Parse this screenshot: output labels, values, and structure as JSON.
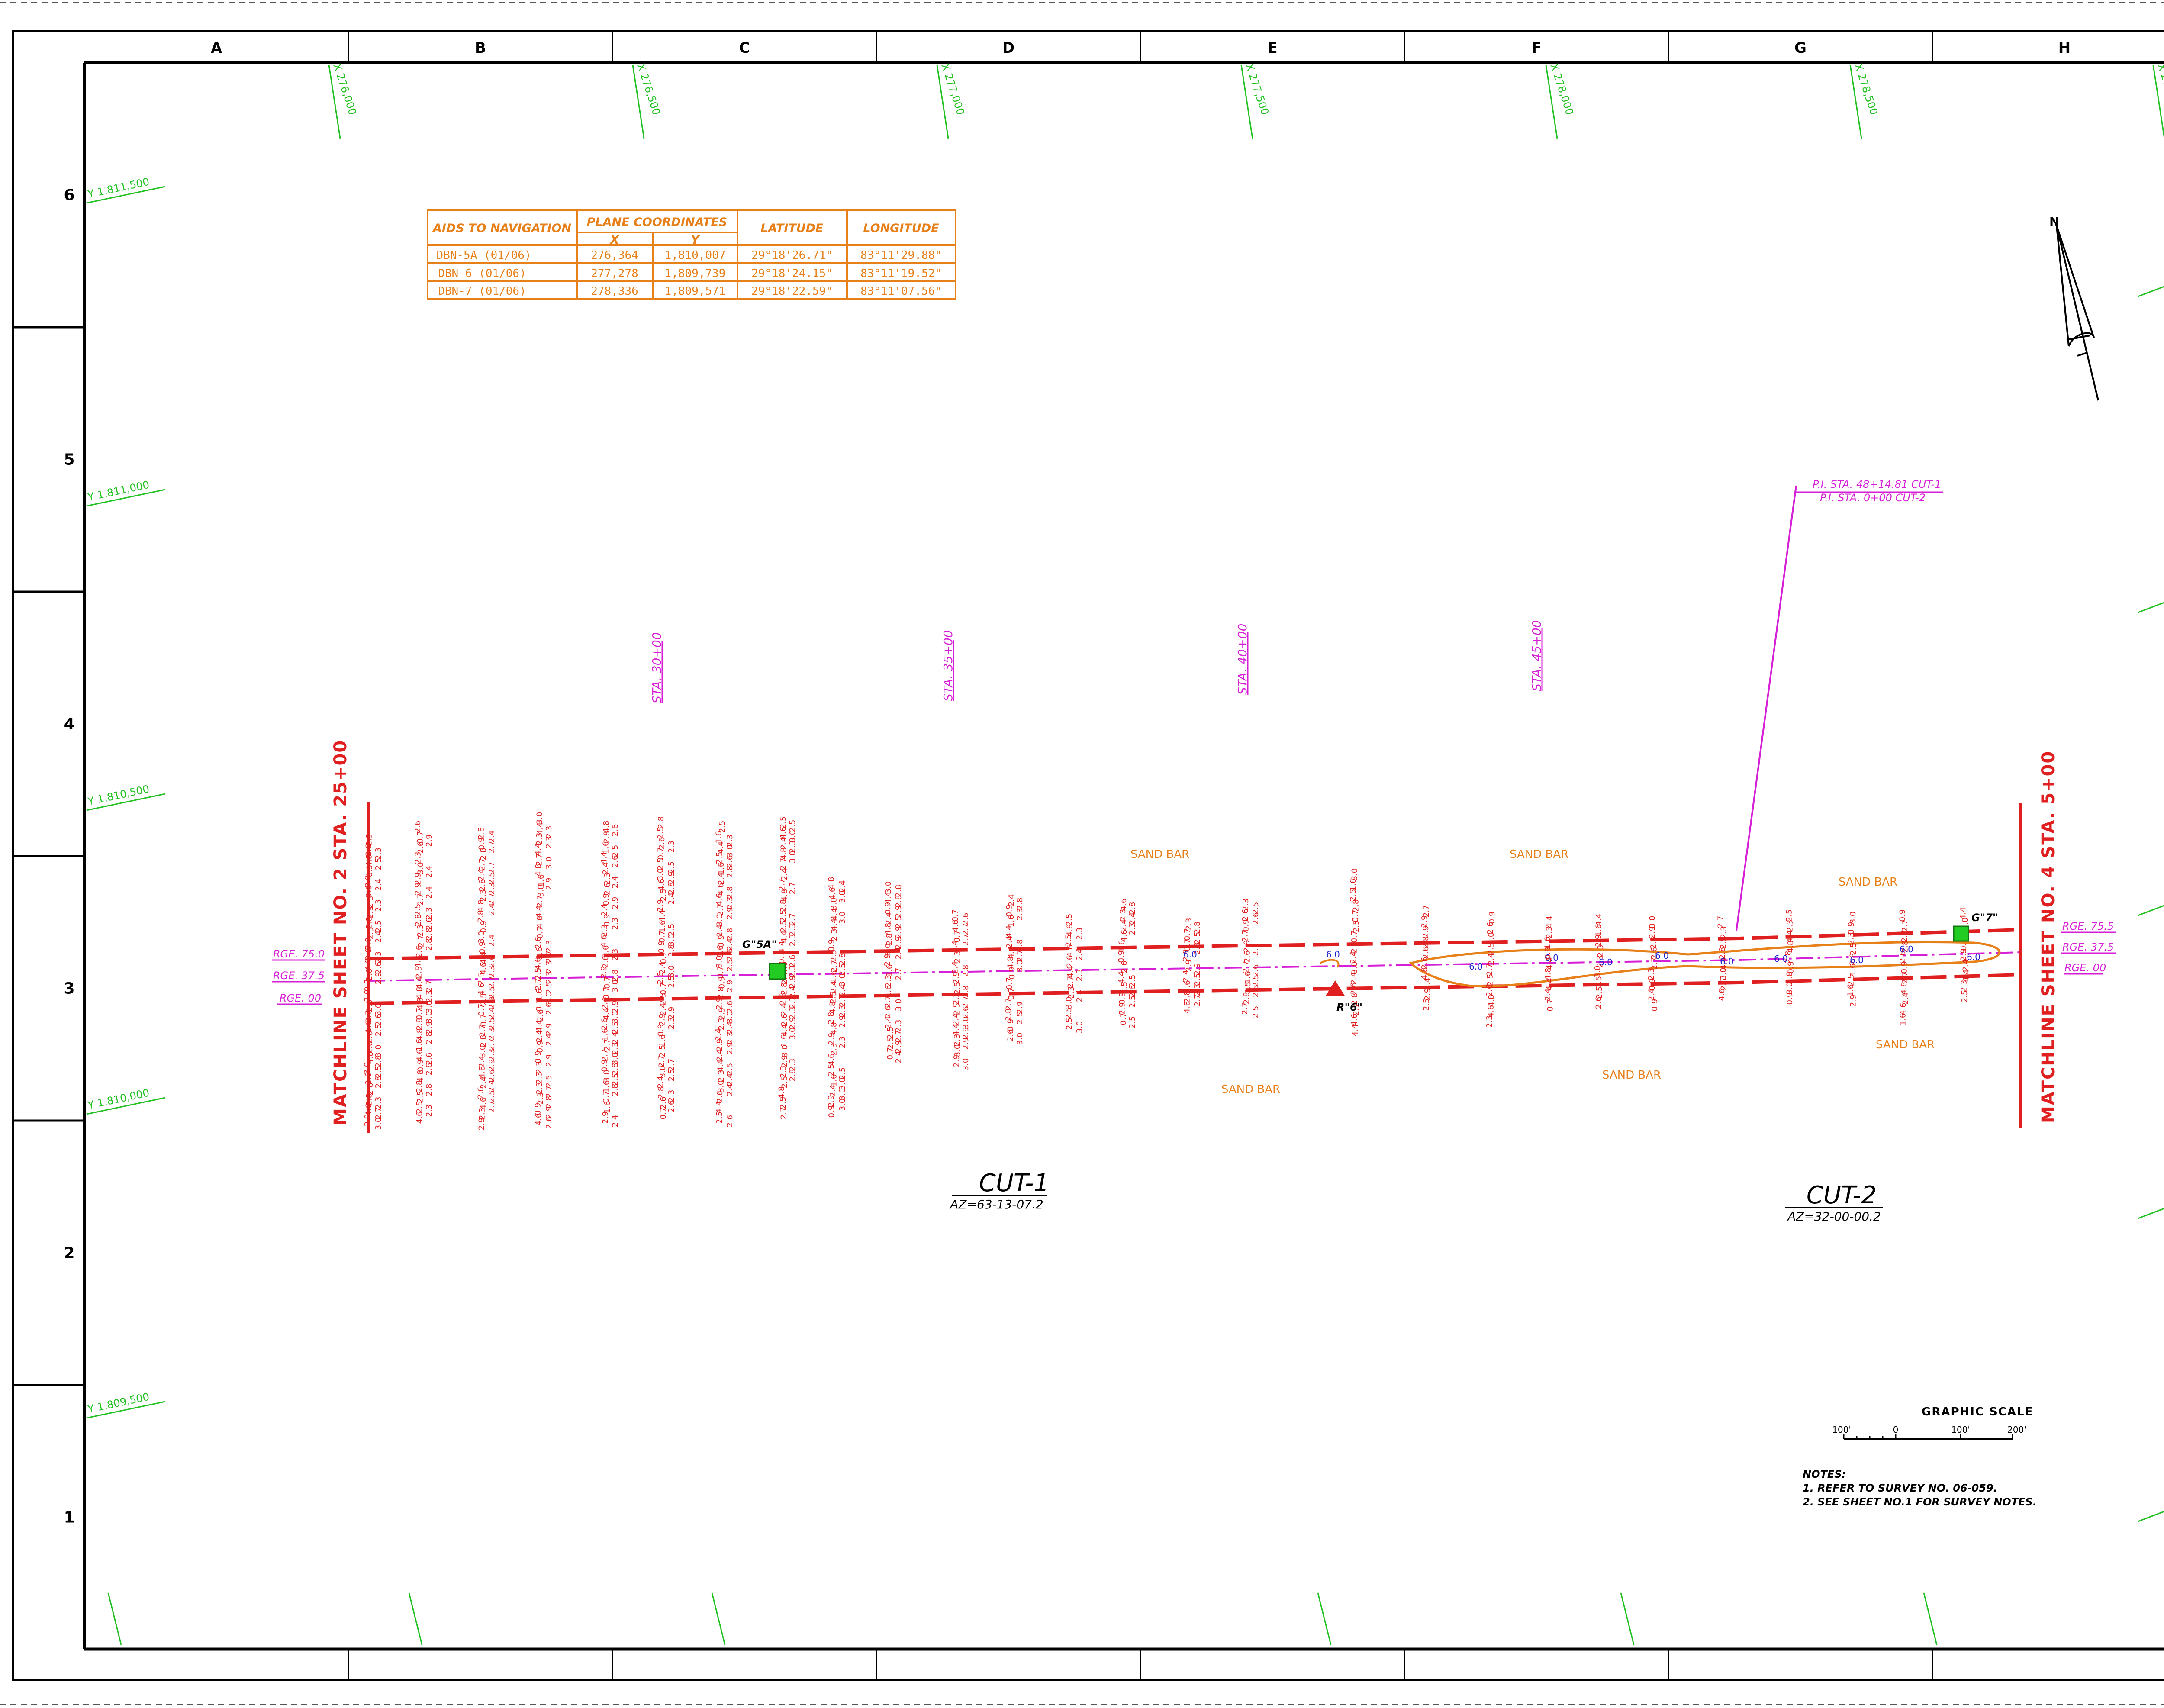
{
  "colors": {
    "border": "#000000",
    "grid_tick": "#22c122",
    "channel": "#e02020",
    "stationing": "#d61fd6",
    "aids_table": "#e8801a",
    "sand_bar": "#e8801a",
    "blue_sounding": "#2020d0",
    "marker_green": "#22cc22",
    "marker_red": "#e02020"
  },
  "border": {
    "columns": [
      "A",
      "B",
      "C",
      "D",
      "E",
      "F",
      "G",
      "H"
    ],
    "rows": [
      "6",
      "5",
      "4",
      "3",
      "2",
      "1"
    ]
  },
  "grid_ticks": {
    "x_labels": [
      "X 276,000",
      "X 276,500",
      "X 277,000",
      "X 277,500",
      "X 278,000",
      "X 278,500",
      "X 279,000"
    ],
    "y_labels": [
      "Y 1,811,500",
      "Y 1,811,000",
      "Y 1,810,500",
      "Y 1,810,000",
      "Y 1,809,500"
    ]
  },
  "aids_table": {
    "header_aids": "AIDS TO NAVIGATION",
    "header_plane": "PLANE COORDINATES",
    "header_x": "X",
    "header_y": "Y",
    "header_lat": "LATITUDE",
    "header_lon": "LONGITUDE",
    "rows": [
      {
        "aid": "DBN-5A (01/06)",
        "x": "276,364",
        "y": "1,810,007",
        "lat": "29°18'26.71\"",
        "lon": "83°11'29.88\""
      },
      {
        "aid": "DBN-6 (01/06)",
        "x": "277,278",
        "y": "1,809,739",
        "lat": "29°18'24.15\"",
        "lon": "83°11'19.52\""
      },
      {
        "aid": "DBN-7 (01/06)",
        "x": "278,336",
        "y": "1,809,571",
        "lat": "29°18'22.59\"",
        "lon": "83°11'07.56\""
      }
    ]
  },
  "stations": [
    "STA. 30+00",
    "STA. 35+00",
    "STA. 40+00",
    "STA. 45+00"
  ],
  "pi_label": {
    "line1": "P.I. STA. 48+14.81 CUT-1",
    "line2": "P.I. STA. 0+00 CUT-2"
  },
  "matchlines": {
    "left": "MATCHLINE SHEET NO. 2 STA. 25+00",
    "right": "MATCHLINE SHEET NO. 4 STA. 5+00"
  },
  "range_labels": {
    "left": [
      "RGE. 75.0",
      "RGE. 37.5",
      "RGE. 00"
    ],
    "right": [
      "RGE. 75.5",
      "RGE. 37.5",
      "RGE. 00"
    ]
  },
  "aids_markers": {
    "aid_5a": "G\"5A\"",
    "aid_6": "R\"6\"",
    "aid_7": "G\"7\""
  },
  "sand_bars": [
    "SAND BAR",
    "SAND BAR",
    "SAND BAR",
    "SAND BAR",
    "SAND BAR",
    "SAND BAR"
  ],
  "cuts": [
    {
      "name": "CUT-1",
      "azimuth": "AZ=63-13-07.2"
    },
    {
      "name": "CUT-2",
      "azimuth": "AZ=32-00-00.2"
    }
  ],
  "north_arrow": {
    "label": "N"
  },
  "graphic_scale": {
    "title": "GRAPHIC SCALE",
    "ticks": [
      "100'",
      "0",
      "100'",
      "200'"
    ]
  },
  "notes": {
    "title": "NOTES:",
    "lines": [
      "1. REFER TO SURVEY NO. 06-059.",
      "2. SEE SHEET NO.1 FOR SURVEY NOTES."
    ]
  }
}
